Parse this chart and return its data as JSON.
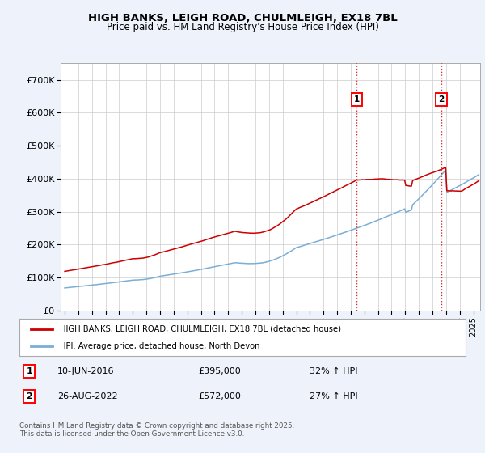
{
  "title1": "HIGH BANKS, LEIGH ROAD, CHULMLEIGH, EX18 7BL",
  "title2": "Price paid vs. HM Land Registry's House Price Index (HPI)",
  "xlim_start": 1994.7,
  "xlim_end": 2025.5,
  "ylim_min": 0,
  "ylim_max": 750000,
  "yticks": [
    0,
    100000,
    200000,
    300000,
    400000,
    500000,
    600000,
    700000
  ],
  "ytick_labels": [
    "£0",
    "£100K",
    "£200K",
    "£300K",
    "£400K",
    "£500K",
    "£600K",
    "£700K"
  ],
  "red_line_label": "HIGH BANKS, LEIGH ROAD, CHULMLEIGH, EX18 7BL (detached house)",
  "blue_line_label": "HPI: Average price, detached house, North Devon",
  "marker1_date": 2016.44,
  "marker1_value": 395000,
  "marker1_text": "10-JUN-2016",
  "marker1_pct": "32% ↑ HPI",
  "marker2_date": 2022.65,
  "marker2_value": 572000,
  "marker2_text": "26-AUG-2022",
  "marker2_pct": "27% ↑ HPI",
  "footnote": "Contains HM Land Registry data © Crown copyright and database right 2025.\nThis data is licensed under the Open Government Licence v3.0.",
  "background_color": "#eef2fa",
  "plot_bg_color": "#ffffff",
  "red_color": "#cc0000",
  "blue_color": "#7aaed6",
  "grid_color": "#cccccc",
  "marker_line_color": "#cc0000",
  "xticks": [
    1995,
    1996,
    1997,
    1998,
    1999,
    2000,
    2001,
    2002,
    2003,
    2004,
    2005,
    2006,
    2007,
    2008,
    2009,
    2010,
    2011,
    2012,
    2013,
    2014,
    2015,
    2016,
    2017,
    2018,
    2019,
    2020,
    2021,
    2022,
    2023,
    2024,
    2025
  ]
}
